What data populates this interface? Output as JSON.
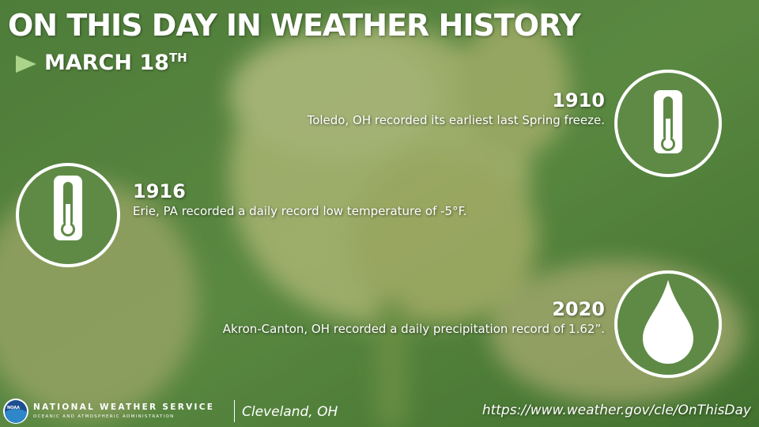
{
  "header": {
    "title": "ON THIS DAY IN WEATHER HISTORY",
    "date": "MARCH 18",
    "date_suffix": "TH"
  },
  "events": [
    {
      "year": "1910",
      "text": "Toledo, OH recorded its earliest last Spring freeze."
    },
    {
      "year": "1916",
      "text": "Erie, PA recorded a daily record low temperature of -5°F."
    },
    {
      "year": "2020",
      "text": "Akron-Canton, OH recorded a daily precipitation record of 1.62”."
    }
  ],
  "footer": {
    "logo": "NOAA",
    "agency": "NATIONAL WEATHER SERVICE",
    "subagency": "OCEANIC AND ATMOSPHERIC ADMINISTRATION",
    "office": "Cleveland, OH",
    "url": "https://www.weather.gov/cle/OnThisDay"
  }
}
